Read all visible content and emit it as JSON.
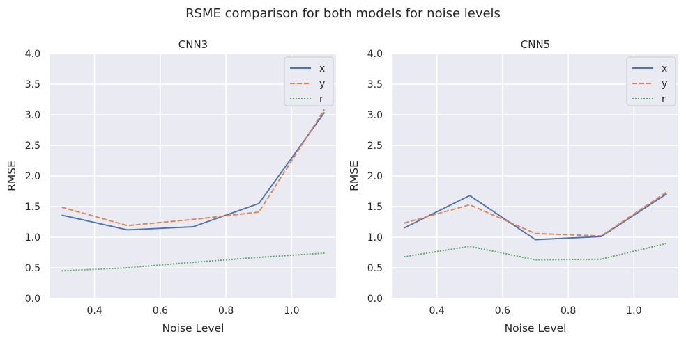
{
  "figure": {
    "title": "RSME comparison for both models for noise levels"
  },
  "chart_data": [
    {
      "type": "line",
      "title": "CNN3",
      "xlabel": "Noise Level",
      "ylabel": "RMSE",
      "xlim": [
        0.265,
        1.135
      ],
      "ylim": [
        0.0,
        4.0
      ],
      "xticks": [
        0.4,
        0.6,
        0.8,
        1.0
      ],
      "xtick_labels": [
        "0.4",
        "0.6",
        "0.8",
        "1.0"
      ],
      "yticks": [
        0.0,
        0.5,
        1.0,
        1.5,
        2.0,
        2.5,
        3.0,
        3.5,
        4.0
      ],
      "ytick_labels": [
        "0.0",
        "0.5",
        "1.0",
        "1.5",
        "2.0",
        "2.5",
        "3.0",
        "3.5",
        "4.0"
      ],
      "grid": true,
      "legend_position": "top-right",
      "x": [
        0.3,
        0.5,
        0.7,
        0.9,
        1.1
      ],
      "series": [
        {
          "name": "x",
          "color": "#4c72b0",
          "dash": "solid",
          "values": [
            1.36,
            1.12,
            1.17,
            1.55,
            3.04
          ]
        },
        {
          "name": "y",
          "color": "#dd8452",
          "dash": "dashed",
          "values": [
            1.49,
            1.19,
            1.29,
            1.41,
            3.09
          ]
        },
        {
          "name": "r",
          "color": "#55a868",
          "dash": "dotted",
          "values": [
            0.45,
            0.5,
            0.59,
            0.67,
            0.74
          ]
        }
      ]
    },
    {
      "type": "line",
      "title": "CNN5",
      "xlabel": "Noise Level",
      "ylabel": "RMSE",
      "xlim": [
        0.265,
        1.135
      ],
      "ylim": [
        0.0,
        4.0
      ],
      "xticks": [
        0.4,
        0.6,
        0.8,
        1.0
      ],
      "xtick_labels": [
        "0.4",
        "0.6",
        "0.8",
        "1.0"
      ],
      "yticks": [
        0.0,
        0.5,
        1.0,
        1.5,
        2.0,
        2.5,
        3.0,
        3.5,
        4.0
      ],
      "ytick_labels": [
        "0.0",
        "0.5",
        "1.0",
        "1.5",
        "2.0",
        "2.5",
        "3.0",
        "3.5",
        "4.0"
      ],
      "grid": true,
      "legend_position": "top-right",
      "x": [
        0.3,
        0.5,
        0.7,
        0.9,
        1.1
      ],
      "series": [
        {
          "name": "x",
          "color": "#4c72b0",
          "dash": "solid",
          "values": [
            1.15,
            1.68,
            0.96,
            1.01,
            1.71
          ]
        },
        {
          "name": "y",
          "color": "#dd8452",
          "dash": "dashed",
          "values": [
            1.23,
            1.53,
            1.06,
            1.02,
            1.74
          ]
        },
        {
          "name": "r",
          "color": "#55a868",
          "dash": "dotted",
          "values": [
            0.68,
            0.85,
            0.63,
            0.64,
            0.9
          ]
        }
      ]
    }
  ]
}
